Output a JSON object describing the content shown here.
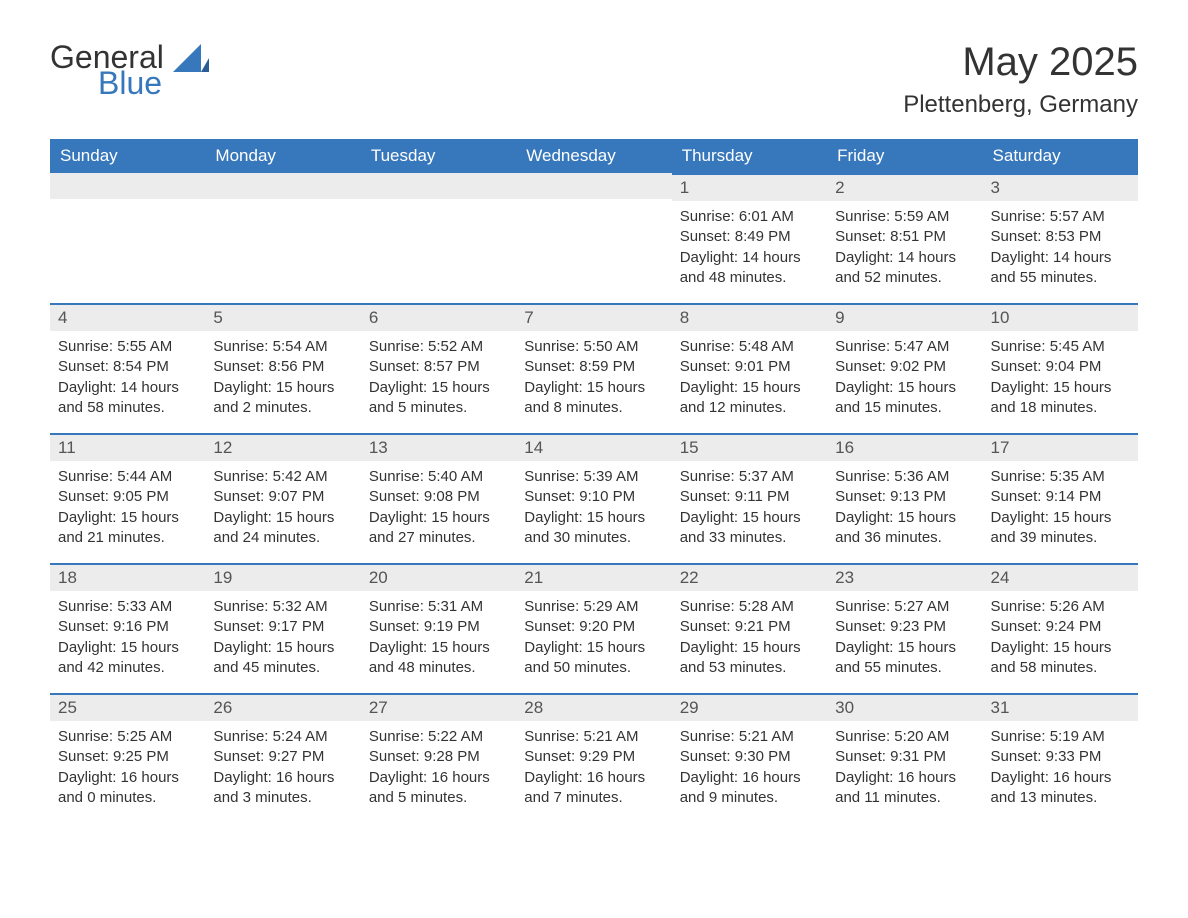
{
  "logo": {
    "text1": "General",
    "text2": "Blue"
  },
  "title": "May 2025",
  "location": "Plettenberg, Germany",
  "colors": {
    "header_bg": "#3777bc",
    "header_text": "#ffffff",
    "daynum_bg": "#ececec",
    "daynum_border": "#3777bc",
    "body_text": "#333333",
    "logo_blue": "#3777bc",
    "page_bg": "#ffffff"
  },
  "typography": {
    "month_title_size": 40,
    "location_size": 24,
    "header_cell_size": 17,
    "daynum_size": 17,
    "body_size": 15
  },
  "calendar": {
    "type": "table",
    "columns": [
      "Sunday",
      "Monday",
      "Tuesday",
      "Wednesday",
      "Thursday",
      "Friday",
      "Saturday"
    ],
    "weeks": [
      [
        null,
        null,
        null,
        null,
        {
          "n": "1",
          "sunrise": "Sunrise: 6:01 AM",
          "sunset": "Sunset: 8:49 PM",
          "daylight": "Daylight: 14 hours and 48 minutes."
        },
        {
          "n": "2",
          "sunrise": "Sunrise: 5:59 AM",
          "sunset": "Sunset: 8:51 PM",
          "daylight": "Daylight: 14 hours and 52 minutes."
        },
        {
          "n": "3",
          "sunrise": "Sunrise: 5:57 AM",
          "sunset": "Sunset: 8:53 PM",
          "daylight": "Daylight: 14 hours and 55 minutes."
        }
      ],
      [
        {
          "n": "4",
          "sunrise": "Sunrise: 5:55 AM",
          "sunset": "Sunset: 8:54 PM",
          "daylight": "Daylight: 14 hours and 58 minutes."
        },
        {
          "n": "5",
          "sunrise": "Sunrise: 5:54 AM",
          "sunset": "Sunset: 8:56 PM",
          "daylight": "Daylight: 15 hours and 2 minutes."
        },
        {
          "n": "6",
          "sunrise": "Sunrise: 5:52 AM",
          "sunset": "Sunset: 8:57 PM",
          "daylight": "Daylight: 15 hours and 5 minutes."
        },
        {
          "n": "7",
          "sunrise": "Sunrise: 5:50 AM",
          "sunset": "Sunset: 8:59 PM",
          "daylight": "Daylight: 15 hours and 8 minutes."
        },
        {
          "n": "8",
          "sunrise": "Sunrise: 5:48 AM",
          "sunset": "Sunset: 9:01 PM",
          "daylight": "Daylight: 15 hours and 12 minutes."
        },
        {
          "n": "9",
          "sunrise": "Sunrise: 5:47 AM",
          "sunset": "Sunset: 9:02 PM",
          "daylight": "Daylight: 15 hours and 15 minutes."
        },
        {
          "n": "10",
          "sunrise": "Sunrise: 5:45 AM",
          "sunset": "Sunset: 9:04 PM",
          "daylight": "Daylight: 15 hours and 18 minutes."
        }
      ],
      [
        {
          "n": "11",
          "sunrise": "Sunrise: 5:44 AM",
          "sunset": "Sunset: 9:05 PM",
          "daylight": "Daylight: 15 hours and 21 minutes."
        },
        {
          "n": "12",
          "sunrise": "Sunrise: 5:42 AM",
          "sunset": "Sunset: 9:07 PM",
          "daylight": "Daylight: 15 hours and 24 minutes."
        },
        {
          "n": "13",
          "sunrise": "Sunrise: 5:40 AM",
          "sunset": "Sunset: 9:08 PM",
          "daylight": "Daylight: 15 hours and 27 minutes."
        },
        {
          "n": "14",
          "sunrise": "Sunrise: 5:39 AM",
          "sunset": "Sunset: 9:10 PM",
          "daylight": "Daylight: 15 hours and 30 minutes."
        },
        {
          "n": "15",
          "sunrise": "Sunrise: 5:37 AM",
          "sunset": "Sunset: 9:11 PM",
          "daylight": "Daylight: 15 hours and 33 minutes."
        },
        {
          "n": "16",
          "sunrise": "Sunrise: 5:36 AM",
          "sunset": "Sunset: 9:13 PM",
          "daylight": "Daylight: 15 hours and 36 minutes."
        },
        {
          "n": "17",
          "sunrise": "Sunrise: 5:35 AM",
          "sunset": "Sunset: 9:14 PM",
          "daylight": "Daylight: 15 hours and 39 minutes."
        }
      ],
      [
        {
          "n": "18",
          "sunrise": "Sunrise: 5:33 AM",
          "sunset": "Sunset: 9:16 PM",
          "daylight": "Daylight: 15 hours and 42 minutes."
        },
        {
          "n": "19",
          "sunrise": "Sunrise: 5:32 AM",
          "sunset": "Sunset: 9:17 PM",
          "daylight": "Daylight: 15 hours and 45 minutes."
        },
        {
          "n": "20",
          "sunrise": "Sunrise: 5:31 AM",
          "sunset": "Sunset: 9:19 PM",
          "daylight": "Daylight: 15 hours and 48 minutes."
        },
        {
          "n": "21",
          "sunrise": "Sunrise: 5:29 AM",
          "sunset": "Sunset: 9:20 PM",
          "daylight": "Daylight: 15 hours and 50 minutes."
        },
        {
          "n": "22",
          "sunrise": "Sunrise: 5:28 AM",
          "sunset": "Sunset: 9:21 PM",
          "daylight": "Daylight: 15 hours and 53 minutes."
        },
        {
          "n": "23",
          "sunrise": "Sunrise: 5:27 AM",
          "sunset": "Sunset: 9:23 PM",
          "daylight": "Daylight: 15 hours and 55 minutes."
        },
        {
          "n": "24",
          "sunrise": "Sunrise: 5:26 AM",
          "sunset": "Sunset: 9:24 PM",
          "daylight": "Daylight: 15 hours and 58 minutes."
        }
      ],
      [
        {
          "n": "25",
          "sunrise": "Sunrise: 5:25 AM",
          "sunset": "Sunset: 9:25 PM",
          "daylight": "Daylight: 16 hours and 0 minutes."
        },
        {
          "n": "26",
          "sunrise": "Sunrise: 5:24 AM",
          "sunset": "Sunset: 9:27 PM",
          "daylight": "Daylight: 16 hours and 3 minutes."
        },
        {
          "n": "27",
          "sunrise": "Sunrise: 5:22 AM",
          "sunset": "Sunset: 9:28 PM",
          "daylight": "Daylight: 16 hours and 5 minutes."
        },
        {
          "n": "28",
          "sunrise": "Sunrise: 5:21 AM",
          "sunset": "Sunset: 9:29 PM",
          "daylight": "Daylight: 16 hours and 7 minutes."
        },
        {
          "n": "29",
          "sunrise": "Sunrise: 5:21 AM",
          "sunset": "Sunset: 9:30 PM",
          "daylight": "Daylight: 16 hours and 9 minutes."
        },
        {
          "n": "30",
          "sunrise": "Sunrise: 5:20 AM",
          "sunset": "Sunset: 9:31 PM",
          "daylight": "Daylight: 16 hours and 11 minutes."
        },
        {
          "n": "31",
          "sunrise": "Sunrise: 5:19 AM",
          "sunset": "Sunset: 9:33 PM",
          "daylight": "Daylight: 16 hours and 13 minutes."
        }
      ]
    ]
  }
}
